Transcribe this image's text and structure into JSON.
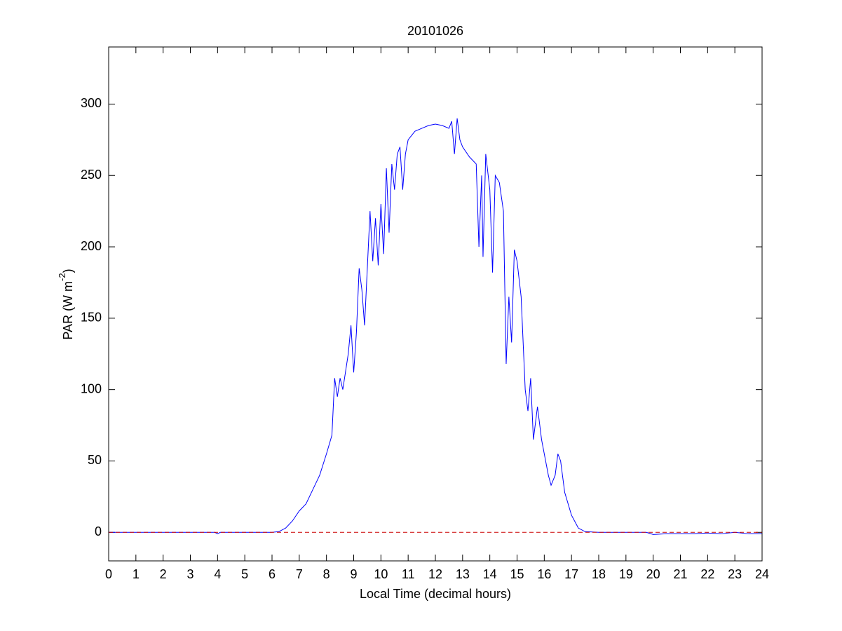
{
  "chart_data": {
    "type": "line",
    "title": "20101026",
    "xlabel": "Local Time (decimal hours)",
    "ylabel": {
      "text": "PAR (W m",
      "superscript": "-2",
      "suffix": ")"
    },
    "xlim": [
      0,
      24
    ],
    "xticks": [
      0,
      1,
      2,
      3,
      4,
      5,
      6,
      7,
      8,
      9,
      10,
      11,
      12,
      13,
      14,
      15,
      16,
      17,
      18,
      19,
      20,
      21,
      22,
      23,
      24
    ],
    "ylim": [
      -20,
      340
    ],
    "yticks": [
      0,
      50,
      100,
      150,
      200,
      250,
      300
    ],
    "grid": false,
    "series": [
      {
        "color": "#0000ff",
        "dash": false,
        "x": [
          0,
          1,
          2,
          3,
          3.9,
          4.0,
          4.1,
          5,
          6,
          6.25,
          6.5,
          6.75,
          7.0,
          7.25,
          7.5,
          7.75,
          8.0,
          8.2,
          8.3,
          8.4,
          8.5,
          8.6,
          8.8,
          8.9,
          9.0,
          9.1,
          9.2,
          9.3,
          9.4,
          9.5,
          9.6,
          9.7,
          9.8,
          9.9,
          10.0,
          10.1,
          10.2,
          10.3,
          10.4,
          10.5,
          10.6,
          10.7,
          10.8,
          10.9,
          11.0,
          11.25,
          11.5,
          11.75,
          12.0,
          12.25,
          12.5,
          12.6,
          12.7,
          12.8,
          12.9,
          13.0,
          13.25,
          13.5,
          13.6,
          13.7,
          13.75,
          13.85,
          14.0,
          14.1,
          14.2,
          14.35,
          14.5,
          14.6,
          14.7,
          14.8,
          14.9,
          15.0,
          15.15,
          15.3,
          15.4,
          15.5,
          15.6,
          15.75,
          15.9,
          16.0,
          16.15,
          16.25,
          16.4,
          16.5,
          16.6,
          16.75,
          17.0,
          17.25,
          17.5,
          18,
          19,
          19.75,
          20,
          20.5,
          21,
          21.5,
          22,
          22.5,
          23,
          23.5,
          24
        ],
        "values": [
          0,
          0,
          0,
          0,
          0,
          -1,
          0,
          0,
          0,
          0.5,
          3,
          8,
          15,
          20,
          30,
          40,
          55,
          68,
          108,
          95,
          108,
          100,
          125,
          145,
          112,
          140,
          185,
          170,
          145,
          185,
          225,
          190,
          220,
          187,
          230,
          195,
          255,
          210,
          258,
          240,
          265,
          270,
          240,
          265,
          275,
          281,
          283,
          285,
          286,
          285,
          283,
          288,
          265,
          290,
          275,
          270,
          263,
          258,
          200,
          250,
          193,
          265,
          240,
          182,
          250,
          245,
          225,
          118,
          165,
          133,
          198,
          190,
          165,
          100,
          85,
          108,
          65,
          88,
          65,
          55,
          40,
          33,
          40,
          55,
          50,
          28,
          12,
          3,
          0.5,
          0,
          0,
          0,
          -1.5,
          -1,
          -1,
          -1,
          -0.5,
          -1,
          0,
          -1,
          -1
        ]
      },
      {
        "color": "#cc0000",
        "dash": true,
        "x": [
          0,
          24
        ],
        "values": [
          0,
          0
        ]
      }
    ]
  }
}
